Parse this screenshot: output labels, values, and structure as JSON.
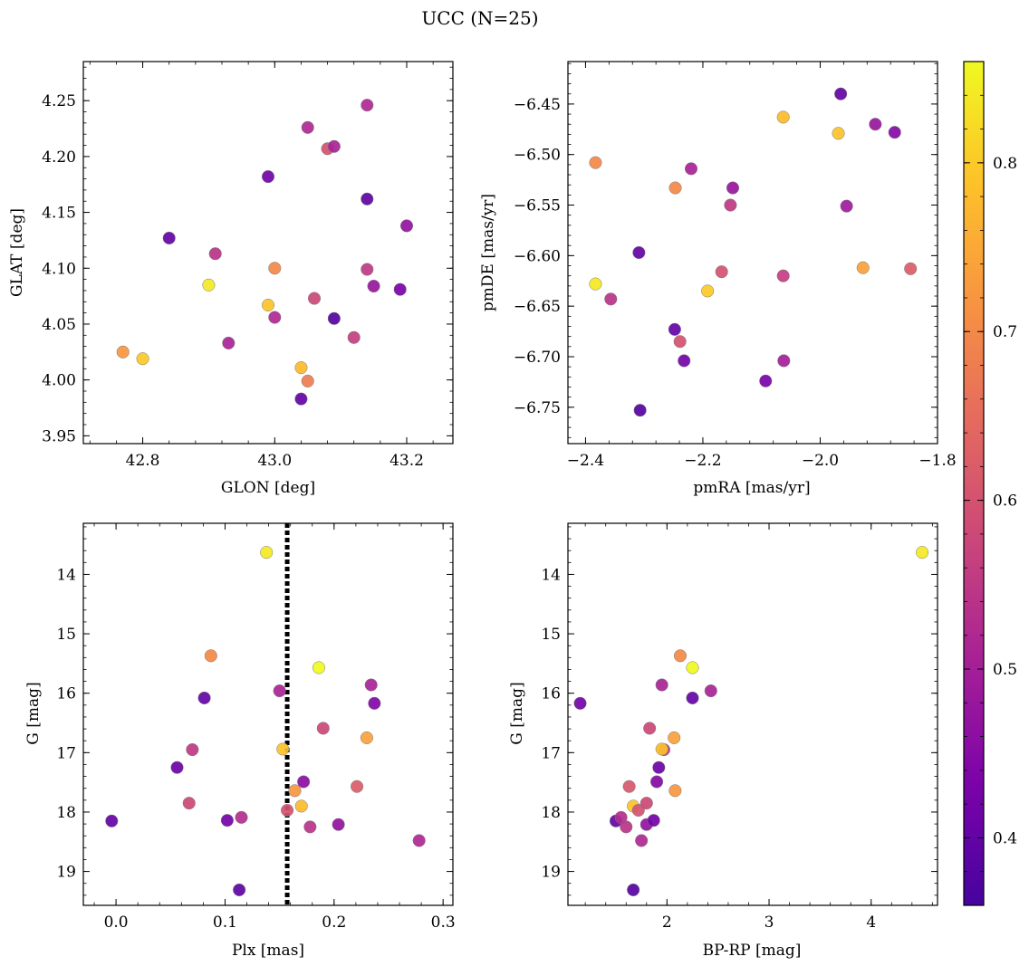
{
  "figure_title": "UCC (N=25)",
  "colorbar": {
    "colormap": "plasma",
    "range": [
      0.36,
      0.86
    ],
    "ticks": [
      0.4,
      0.5,
      0.6,
      0.7,
      0.8
    ],
    "tick_labels": [
      "0.4",
      "0.5",
      "0.6",
      "0.7",
      "0.8"
    ]
  },
  "chart_data": [
    {
      "type": "scatter",
      "panel": "top-left",
      "xlabel": "GLON [deg]",
      "ylabel": "GLAT [deg]",
      "xlim": [
        42.71,
        43.27
      ],
      "ylim": [
        3.943,
        4.285
      ],
      "xticks": [
        42.8,
        43.0,
        43.2
      ],
      "xtick_labels": [
        "42.8",
        "43.0",
        "43.2"
      ],
      "yticks": [
        3.95,
        4.0,
        4.05,
        4.1,
        4.15,
        4.2,
        4.25
      ],
      "ytick_labels": [
        "3.95",
        "4.00",
        "4.05",
        "4.10",
        "4.15",
        "4.20",
        "4.25"
      ],
      "points": [
        {
          "x": 42.77,
          "y": 4.025,
          "c": 0.72
        },
        {
          "x": 42.8,
          "y": 4.019,
          "c": 0.8
        },
        {
          "x": 42.84,
          "y": 4.127,
          "c": 0.4
        },
        {
          "x": 42.9,
          "y": 4.085,
          "c": 0.84
        },
        {
          "x": 42.91,
          "y": 4.113,
          "c": 0.54
        },
        {
          "x": 42.93,
          "y": 4.033,
          "c": 0.51
        },
        {
          "x": 42.99,
          "y": 4.182,
          "c": 0.42
        },
        {
          "x": 42.99,
          "y": 4.067,
          "c": 0.79
        },
        {
          "x": 43.0,
          "y": 4.1,
          "c": 0.7
        },
        {
          "x": 43.0,
          "y": 4.056,
          "c": 0.52
        },
        {
          "x": 43.04,
          "y": 4.011,
          "c": 0.78
        },
        {
          "x": 43.04,
          "y": 3.983,
          "c": 0.4
        },
        {
          "x": 43.05,
          "y": 3.999,
          "c": 0.68
        },
        {
          "x": 43.05,
          "y": 4.226,
          "c": 0.52
        },
        {
          "x": 43.06,
          "y": 4.073,
          "c": 0.58
        },
        {
          "x": 43.08,
          "y": 4.207,
          "c": 0.6
        },
        {
          "x": 43.09,
          "y": 4.209,
          "c": 0.51
        },
        {
          "x": 43.09,
          "y": 4.055,
          "c": 0.38
        },
        {
          "x": 43.12,
          "y": 4.038,
          "c": 0.56
        },
        {
          "x": 43.14,
          "y": 4.246,
          "c": 0.52
        },
        {
          "x": 43.14,
          "y": 4.162,
          "c": 0.39
        },
        {
          "x": 43.14,
          "y": 4.099,
          "c": 0.55
        },
        {
          "x": 43.15,
          "y": 4.084,
          "c": 0.48
        },
        {
          "x": 43.19,
          "y": 4.081,
          "c": 0.43
        },
        {
          "x": 43.2,
          "y": 4.138,
          "c": 0.47
        }
      ]
    },
    {
      "type": "scatter",
      "panel": "top-right",
      "xlabel": "pmRA [mas/yr]",
      "ylabel": "pmDE [mas/yr]",
      "xlim": [
        -2.43,
        -1.8
      ],
      "ylim": [
        -6.786,
        -6.408
      ],
      "xticks": [
        -2.4,
        -2.2,
        -2.0,
        -1.8
      ],
      "xtick_labels": [
        "−2.4",
        "−2.2",
        "−2.0",
        "−1.8"
      ],
      "yticks": [
        -6.75,
        -6.7,
        -6.65,
        -6.6,
        -6.55,
        -6.5,
        -6.45
      ],
      "ytick_labels": [
        "−6.75",
        "−6.70",
        "−6.65",
        "−6.60",
        "−6.55",
        "−6.50",
        "−6.45"
      ],
      "points": [
        {
          "x": -2.383,
          "y": -6.508,
          "c": 0.7
        },
        {
          "x": -2.383,
          "y": -6.628,
          "c": 0.84
        },
        {
          "x": -2.357,
          "y": -6.643,
          "c": 0.54
        },
        {
          "x": -2.309,
          "y": -6.597,
          "c": 0.4
        },
        {
          "x": -2.307,
          "y": -6.753,
          "c": 0.38
        },
        {
          "x": -2.247,
          "y": -6.533,
          "c": 0.7
        },
        {
          "x": -2.248,
          "y": -6.673,
          "c": 0.4
        },
        {
          "x": -2.239,
          "y": -6.685,
          "c": 0.6
        },
        {
          "x": -2.232,
          "y": -6.704,
          "c": 0.42
        },
        {
          "x": -2.22,
          "y": -6.514,
          "c": 0.51
        },
        {
          "x": -2.192,
          "y": -6.635,
          "c": 0.8
        },
        {
          "x": -2.168,
          "y": -6.616,
          "c": 0.6
        },
        {
          "x": -2.153,
          "y": -6.55,
          "c": 0.55
        },
        {
          "x": -2.149,
          "y": -6.533,
          "c": 0.48
        },
        {
          "x": -2.093,
          "y": -6.724,
          "c": 0.43
        },
        {
          "x": -2.063,
          "y": -6.463,
          "c": 0.78
        },
        {
          "x": -2.063,
          "y": -6.62,
          "c": 0.56
        },
        {
          "x": -2.062,
          "y": -6.704,
          "c": 0.5
        },
        {
          "x": -1.969,
          "y": -6.479,
          "c": 0.79
        },
        {
          "x": -1.965,
          "y": -6.44,
          "c": 0.4
        },
        {
          "x": -1.955,
          "y": -6.551,
          "c": 0.49
        },
        {
          "x": -1.927,
          "y": -6.612,
          "c": 0.74
        },
        {
          "x": -1.906,
          "y": -6.47,
          "c": 0.48
        },
        {
          "x": -1.873,
          "y": -6.478,
          "c": 0.45
        },
        {
          "x": -1.846,
          "y": -6.613,
          "c": 0.62
        }
      ]
    },
    {
      "type": "scatter",
      "panel": "bottom-left",
      "xlabel": "Plx [mas]",
      "ylabel": "G [mag]",
      "xlim": [
        -0.03,
        0.309
      ],
      "ylim": [
        19.57,
        13.14
      ],
      "y_inverted": true,
      "xticks": [
        0.0,
        0.1,
        0.2,
        0.3
      ],
      "xtick_labels": [
        "0.0",
        "0.1",
        "0.2",
        "0.3"
      ],
      "yticks": [
        14,
        15,
        16,
        17,
        18,
        19
      ],
      "ytick_labels": [
        "14",
        "15",
        "16",
        "17",
        "18",
        "19"
      ],
      "vline_x": 0.157,
      "points": [
        {
          "x": -0.004,
          "y": 18.15,
          "c": 0.4
        },
        {
          "x": 0.056,
          "y": 17.25,
          "c": 0.41
        },
        {
          "x": 0.067,
          "y": 17.85,
          "c": 0.58
        },
        {
          "x": 0.07,
          "y": 16.95,
          "c": 0.55
        },
        {
          "x": 0.081,
          "y": 16.08,
          "c": 0.4
        },
        {
          "x": 0.087,
          "y": 15.37,
          "c": 0.7
        },
        {
          "x": 0.102,
          "y": 18.14,
          "c": 0.42
        },
        {
          "x": 0.113,
          "y": 19.31,
          "c": 0.39
        },
        {
          "x": 0.115,
          "y": 18.09,
          "c": 0.53
        },
        {
          "x": 0.138,
          "y": 13.63,
          "c": 0.84
        },
        {
          "x": 0.15,
          "y": 15.96,
          "c": 0.51
        },
        {
          "x": 0.153,
          "y": 16.94,
          "c": 0.79
        },
        {
          "x": 0.157,
          "y": 17.97,
          "c": 0.6
        },
        {
          "x": 0.164,
          "y": 17.64,
          "c": 0.72
        },
        {
          "x": 0.17,
          "y": 17.9,
          "c": 0.78
        },
        {
          "x": 0.172,
          "y": 17.49,
          "c": 0.46
        },
        {
          "x": 0.178,
          "y": 18.25,
          "c": 0.54
        },
        {
          "x": 0.186,
          "y": 15.57,
          "c": 0.86
        },
        {
          "x": 0.19,
          "y": 16.59,
          "c": 0.58
        },
        {
          "x": 0.204,
          "y": 18.21,
          "c": 0.47
        },
        {
          "x": 0.221,
          "y": 17.57,
          "c": 0.62
        },
        {
          "x": 0.23,
          "y": 16.75,
          "c": 0.74
        },
        {
          "x": 0.234,
          "y": 15.86,
          "c": 0.51
        },
        {
          "x": 0.237,
          "y": 16.17,
          "c": 0.44
        },
        {
          "x": 0.278,
          "y": 18.48,
          "c": 0.52
        }
      ]
    },
    {
      "type": "scatter",
      "panel": "bottom-right",
      "xlabel": "BP-RP [mag]",
      "ylabel": "G [mag]",
      "xlim": [
        1.03,
        4.65
      ],
      "ylim": [
        19.57,
        13.14
      ],
      "y_inverted": true,
      "xticks": [
        2,
        3,
        4
      ],
      "xtick_labels": [
        "2",
        "3",
        "4"
      ],
      "yticks": [
        14,
        15,
        16,
        17,
        18,
        19
      ],
      "ytick_labels": [
        "14",
        "15",
        "16",
        "17",
        "18",
        "19"
      ],
      "points": [
        {
          "x": 1.15,
          "y": 16.17,
          "c": 0.42
        },
        {
          "x": 1.5,
          "y": 18.15,
          "c": 0.4
        },
        {
          "x": 1.55,
          "y": 18.09,
          "c": 0.53
        },
        {
          "x": 1.6,
          "y": 18.25,
          "c": 0.54
        },
        {
          "x": 1.63,
          "y": 17.57,
          "c": 0.61
        },
        {
          "x": 1.67,
          "y": 17.9,
          "c": 0.79
        },
        {
          "x": 1.67,
          "y": 19.31,
          "c": 0.38
        },
        {
          "x": 1.72,
          "y": 17.97,
          "c": 0.6
        },
        {
          "x": 1.75,
          "y": 18.48,
          "c": 0.52
        },
        {
          "x": 1.8,
          "y": 17.85,
          "c": 0.58
        },
        {
          "x": 1.8,
          "y": 18.21,
          "c": 0.47
        },
        {
          "x": 1.83,
          "y": 16.59,
          "c": 0.58
        },
        {
          "x": 1.87,
          "y": 18.14,
          "c": 0.42
        },
        {
          "x": 1.9,
          "y": 17.49,
          "c": 0.45
        },
        {
          "x": 1.92,
          "y": 17.25,
          "c": 0.41
        },
        {
          "x": 1.95,
          "y": 15.86,
          "c": 0.51
        },
        {
          "x": 1.97,
          "y": 16.95,
          "c": 0.55
        },
        {
          "x": 1.95,
          "y": 16.94,
          "c": 0.79
        },
        {
          "x": 2.07,
          "y": 16.75,
          "c": 0.74
        },
        {
          "x": 2.08,
          "y": 17.64,
          "c": 0.72
        },
        {
          "x": 2.13,
          "y": 15.37,
          "c": 0.7
        },
        {
          "x": 2.25,
          "y": 15.57,
          "c": 0.86
        },
        {
          "x": 2.25,
          "y": 16.08,
          "c": 0.4
        },
        {
          "x": 2.43,
          "y": 15.96,
          "c": 0.51
        },
        {
          "x": 4.5,
          "y": 13.63,
          "c": 0.84
        }
      ]
    }
  ]
}
